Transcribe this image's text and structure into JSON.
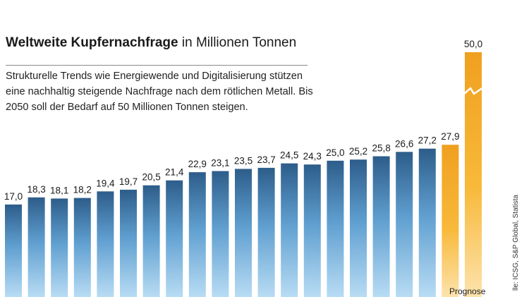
{
  "header": {
    "title_bold": "Weltweite Kupfernachfrage",
    "title_rest": "in Millionen Tonnen",
    "subtitle": "Strukturelle Trends wie Energiewende und Digitalisierung stützen eine nachhaltig steigende Nachfrage nach dem rötlichen Metall. Bis 2050 soll der Bedarf auf 50 Millionen Tonnen steigen."
  },
  "footer": {
    "source": "lle: ICSG, S&P Global, Statista",
    "forecast_label": "Prognose"
  },
  "chart_data": {
    "type": "bar",
    "title": "Weltweite Kupfernachfrage in Millionen Tonnen",
    "axis_break": true,
    "values": [
      17.0,
      18.3,
      18.1,
      18.2,
      19.4,
      19.7,
      20.5,
      21.4,
      22.9,
      23.1,
      23.5,
      23.7,
      24.5,
      24.3,
      25.0,
      25.2,
      25.8,
      26.6,
      27.2,
      27.9,
      50.0
    ],
    "labels": [
      "17,0",
      "18,3",
      "18,1",
      "18,2",
      "19,4",
      "19,7",
      "20,5",
      "21,4",
      "22,9",
      "23,1",
      "23,5",
      "23,7",
      "24,5",
      "24,3",
      "25,0",
      "25,2",
      "25,8",
      "26,6",
      "27,2",
      "27,9",
      "50,0"
    ],
    "forecast": [
      false,
      false,
      false,
      false,
      false,
      false,
      false,
      false,
      false,
      false,
      false,
      false,
      false,
      false,
      false,
      false,
      false,
      false,
      false,
      true,
      true
    ],
    "colors": {
      "historic_top": "#2d5d8a",
      "historic_mid": "#5f9fd0",
      "historic_bottom": "#b8dcf4",
      "forecast_top": "#f0a020",
      "forecast_mid": "#f8b93a",
      "forecast_bottom": "#fce3ac",
      "label": "#1a1a1a"
    }
  }
}
